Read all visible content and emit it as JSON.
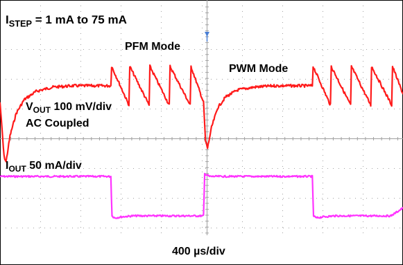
{
  "labels": {
    "istep_main": "I",
    "istep_sub": "STEP",
    "istep_rest": " = 1 mA to 75 mA",
    "pfm": "PFM Mode",
    "pwm": "PWM Mode",
    "vout_main": "V",
    "vout_sub": "OUT",
    "vout_rest": " 100 mV/div",
    "ac_coupled": "AC Coupled",
    "iout_main": "I",
    "iout_sub": "OUT",
    "iout_rest": " 50 mA/div",
    "timebase": "400 µs/div"
  },
  "chart_data": {
    "type": "line",
    "title": "ISTEP = 1 mA to 75 mA",
    "xlabel": "400 µs/div",
    "x_range_div": [
      0,
      10
    ],
    "grid": {
      "x_divisions": 10,
      "y_divisions": 8,
      "dotted": true,
      "center_axes": true
    },
    "colors": {
      "vout": "#ff1a1a",
      "iout": "#ff33ff",
      "grid": "#a0a0a0"
    },
    "annotations": [
      "PFM Mode",
      "PWM Mode",
      "AC Coupled"
    ],
    "series": [
      {
        "name": "VOUT 100 mV/div",
        "unit": "mV (AC coupled)",
        "x": [
          0.0,
          0.1,
          0.15,
          0.25,
          0.4,
          0.6,
          0.9,
          1.3,
          1.8,
          2.3,
          2.75,
          2.77,
          3.2,
          3.22,
          3.7,
          3.72,
          4.2,
          4.22,
          4.72,
          4.74,
          5.05,
          5.1,
          5.15,
          5.25,
          5.4,
          5.6,
          5.9,
          6.3,
          6.8,
          7.3,
          7.75,
          7.77,
          8.2,
          8.22,
          8.7,
          8.72,
          9.2,
          9.22,
          9.72,
          9.74,
          10.0
        ],
        "values": [
          -60,
          -255,
          -275,
          -180,
          -100,
          -50,
          -20,
          -5,
          0,
          0,
          0,
          70,
          -70,
          70,
          -70,
          70,
          -70,
          70,
          -70,
          70,
          -60,
          -200,
          -225,
          -150,
          -80,
          -40,
          -15,
          -5,
          0,
          0,
          0,
          70,
          -70,
          70,
          -70,
          70,
          -70,
          70,
          -70,
          70,
          -30
        ]
      },
      {
        "name": "IOUT 50 mA/div",
        "unit": "mA",
        "x": [
          0.0,
          1.0,
          2.75,
          2.78,
          2.85,
          3.0,
          3.3,
          5.05,
          5.08,
          5.2,
          6.0,
          7.75,
          7.78,
          7.85,
          8.0,
          8.3,
          9.7,
          10.0
        ],
        "values": [
          75,
          75,
          75,
          0,
          -4,
          -2,
          0,
          0,
          80,
          75,
          75,
          75,
          0,
          -4,
          -2,
          0,
          0,
          15
        ]
      }
    ]
  }
}
